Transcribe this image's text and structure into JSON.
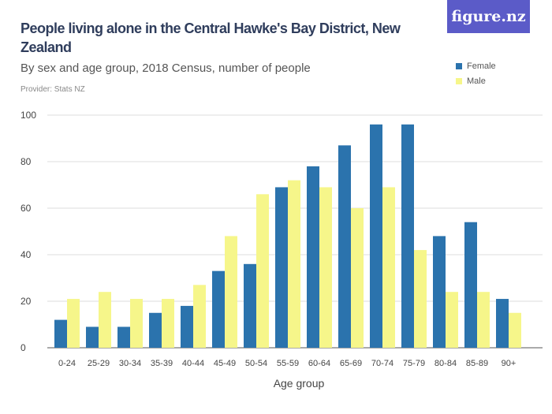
{
  "title": "People living alone in the Central Hawke's Bay District, New Zealand",
  "subtitle": "By sex and age group, 2018 Census, number of people",
  "provider": "Provider: Stats NZ",
  "logo": "figure.nz",
  "chart_data": {
    "type": "bar",
    "xlabel": "Age group",
    "ylabel": "",
    "ylim": [
      0,
      100
    ],
    "yticks": [
      0,
      20,
      40,
      60,
      80,
      100
    ],
    "grid": true,
    "legend": "top-right",
    "categories": [
      "0-24",
      "25-29",
      "30-34",
      "35-39",
      "40-44",
      "45-49",
      "50-54",
      "55-59",
      "60-64",
      "65-69",
      "70-74",
      "75-79",
      "80-84",
      "85-89",
      "90+"
    ],
    "series": [
      {
        "name": "Female",
        "color": "#2b73ad",
        "values": [
          12,
          9,
          9,
          15,
          18,
          33,
          36,
          69,
          78,
          87,
          96,
          96,
          48,
          54,
          21
        ]
      },
      {
        "name": "Male",
        "color": "#f6f68a",
        "values": [
          21,
          24,
          21,
          21,
          27,
          48,
          66,
          72,
          69,
          60,
          69,
          42,
          24,
          24,
          15
        ]
      }
    ]
  }
}
